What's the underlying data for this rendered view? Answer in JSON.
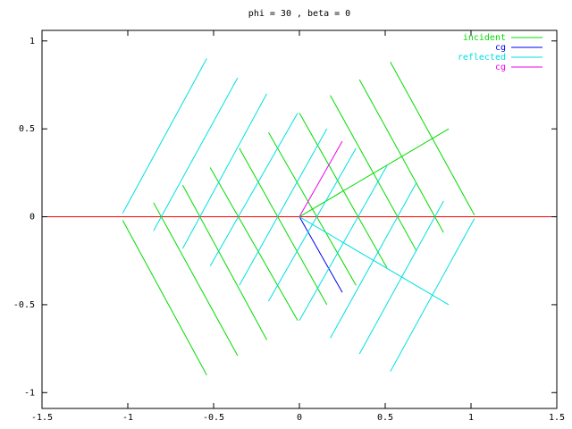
{
  "chart_data": {
    "type": "line",
    "title": "phi = 30 , beta = 0",
    "xlim": [
      -1.5,
      1.5
    ],
    "ylim": [
      -1.09,
      1.06
    ],
    "xticks": [
      -1.5,
      -1,
      -0.5,
      0,
      0.5,
      1,
      1.5
    ],
    "yticks": [
      -1,
      -0.5,
      0,
      0.5,
      1
    ],
    "zeroaxis": true,
    "zeroaxis_color": "#ff0000",
    "legend": "top-right",
    "series": [
      {
        "name": "incident",
        "color": "#00dd00",
        "x": [
          -1.03,
          -0.54,
          null,
          -0.85,
          -0.36,
          null,
          -0.68,
          -0.19,
          null,
          -0.52,
          -0.01,
          null,
          -0.35,
          0.16,
          null,
          -0.18,
          0.33,
          null,
          0,
          0.51,
          null,
          0.18,
          0.68,
          null,
          0.35,
          0.84,
          null,
          0.53,
          1.02,
          null,
          0,
          0.87
        ],
        "values": [
          -0.02,
          -0.9,
          null,
          0.08,
          -0.79,
          null,
          0.18,
          -0.7,
          null,
          0.28,
          -0.59,
          null,
          0.39,
          -0.5,
          null,
          0.48,
          -0.39,
          null,
          0.59,
          -0.29,
          null,
          0.69,
          -0.19,
          null,
          0.78,
          -0.09,
          null,
          0.88,
          0.01,
          null,
          0,
          0.5
        ]
      },
      {
        "name": "cg",
        "color": "#0000ee",
        "x": [
          0,
          0.25
        ],
        "values": [
          0,
          -0.43
        ]
      },
      {
        "name": "reflected",
        "color": "#00e0e0",
        "x": [
          -1.03,
          -0.54,
          null,
          -0.85,
          -0.36,
          null,
          -0.68,
          -0.19,
          null,
          -0.52,
          -0.01,
          null,
          -0.35,
          0.16,
          null,
          -0.18,
          0.33,
          null,
          0,
          0.51,
          null,
          0.18,
          0.68,
          null,
          0.35,
          0.84,
          null,
          0.53,
          1.02,
          null,
          0,
          0.87
        ],
        "values": [
          0.02,
          0.9,
          null,
          -0.08,
          0.79,
          null,
          -0.18,
          0.7,
          null,
          -0.28,
          0.59,
          null,
          -0.39,
          0.5,
          null,
          -0.48,
          0.39,
          null,
          -0.59,
          0.29,
          null,
          -0.69,
          0.19,
          null,
          -0.78,
          0.09,
          null,
          -0.88,
          -0.01,
          null,
          0,
          -0.5
        ]
      },
      {
        "name": "cg",
        "color": "#ee00ee",
        "x": [
          0,
          0.25
        ],
        "values": [
          0,
          0.43
        ]
      }
    ]
  }
}
